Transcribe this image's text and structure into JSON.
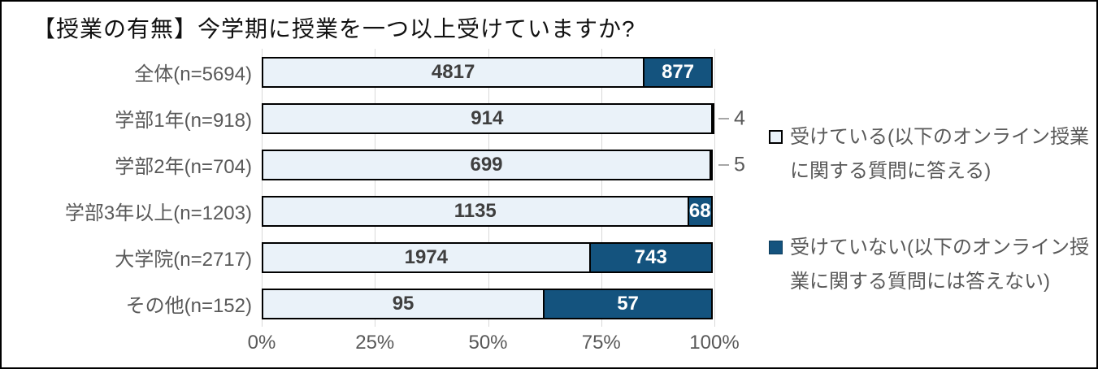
{
  "title": "【授業の有無】今学期に授業を一つ以上受けていますか?",
  "colors": {
    "light_fill": "#eaf2f9",
    "dark_fill": "#14537e",
    "bar_border": "#000000",
    "gridline": "#d9d9d9",
    "gray_text": "#595959",
    "value_text": "#3f3f3f"
  },
  "legend": [
    {
      "marker": "light-square",
      "label": "受けている(以下のオンライン授業に関する質問に答える)"
    },
    {
      "marker": "dark-square",
      "label": "受けていない(以下のオンライン授業に関する質問には答えない)"
    }
  ],
  "chart_data": {
    "type": "bar",
    "subtype": "horizontal-100%-stacked",
    "title": "【授業の有無】今学期に授業を一つ以上受けていますか?",
    "categories": [
      "全体(n=5694)",
      "学部1年(n=918)",
      "学部2年(n=704)",
      "学部3年以上(n=1203)",
      "大学院(n=2717)",
      "その他(n=152)"
    ],
    "series": [
      {
        "name": "受けている(以下のオンライン授業に関する質問に答える)",
        "values": [
          4817,
          914,
          699,
          1135,
          1974,
          95
        ]
      },
      {
        "name": "受けていない(以下のオンライン授業に関する質問には答えない)",
        "values": [
          877,
          4,
          5,
          68,
          743,
          57
        ]
      }
    ],
    "x_ticks": [
      "0%",
      "25%",
      "50%",
      "75%",
      "100%"
    ],
    "xlim": [
      0,
      100
    ],
    "grid": true,
    "legend_position": "right"
  }
}
